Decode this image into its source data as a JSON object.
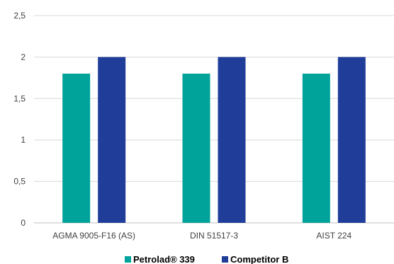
{
  "chart_data": {
    "type": "bar",
    "categories": [
      "AGMA 9005-F16 (AS)",
      "DIN 51517-3",
      "AIST 224"
    ],
    "series": [
      {
        "name": "Petrolad® 339",
        "values": [
          1.8,
          1.8,
          1.8
        ],
        "color": "#00a39a"
      },
      {
        "name": "Competitor B",
        "values": [
          2,
          2,
          2
        ],
        "color": "#1f3d99"
      }
    ],
    "y_ticks": [
      "0",
      "0,5",
      "1",
      "1,5",
      "2",
      "2,5"
    ],
    "y_tick_values": [
      0,
      0.5,
      1,
      1.5,
      2,
      2.5
    ],
    "ylim": [
      0,
      2.5
    ],
    "grid": true,
    "legend_position": "bottom"
  }
}
